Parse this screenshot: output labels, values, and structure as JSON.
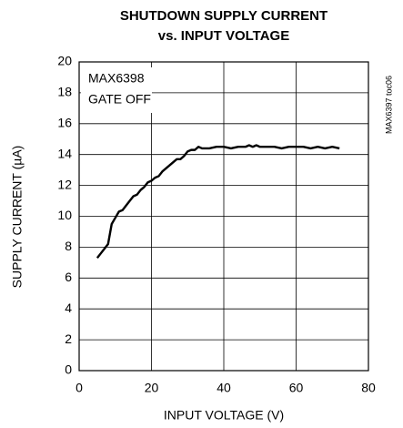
{
  "chart_data": {
    "type": "line",
    "title": [
      "SHUTDOWN SUPPLY CURRENT",
      "vs. INPUT VOLTAGE"
    ],
    "x_label": "INPUT VOLTAGE (V)",
    "y_label": "SUPPLY CURRENT (µA)",
    "annotations": [
      "MAX6398",
      "GATE OFF"
    ],
    "side_note": "MAX6397 toc06",
    "x": [
      5,
      6,
      7,
      8,
      9,
      10,
      11,
      12,
      13,
      14,
      15,
      16,
      17,
      18,
      19,
      20,
      21,
      22,
      23,
      24,
      25,
      26,
      27,
      28,
      29,
      30,
      31,
      32,
      33,
      34,
      35,
      36,
      38,
      40,
      42,
      44,
      46,
      47,
      48,
      49,
      50,
      52,
      54,
      56,
      58,
      60,
      62,
      64,
      66,
      68,
      70,
      72
    ],
    "series": [
      {
        "color": "#000000",
        "values": [
          7.3,
          7.6,
          7.9,
          8.2,
          9.5,
          9.9,
          10.3,
          10.4,
          10.7,
          11.0,
          11.3,
          11.4,
          11.7,
          11.9,
          12.2,
          12.3,
          12.5,
          12.6,
          12.9,
          13.1,
          13.3,
          13.5,
          13.7,
          13.7,
          13.9,
          14.2,
          14.3,
          14.3,
          14.5,
          14.4,
          14.4,
          14.4,
          14.5,
          14.5,
          14.4,
          14.5,
          14.5,
          14.6,
          14.5,
          14.6,
          14.5,
          14.5,
          14.5,
          14.4,
          14.5,
          14.5,
          14.5,
          14.4,
          14.5,
          14.4,
          14.5,
          14.4
        ]
      }
    ],
    "xlim": [
      0,
      80
    ],
    "xticks": [
      0,
      20,
      40,
      60,
      80
    ],
    "ylim": [
      0,
      20
    ],
    "yticks": [
      0,
      2,
      4,
      6,
      8,
      10,
      12,
      14,
      16,
      18,
      20
    ],
    "grid": true
  }
}
